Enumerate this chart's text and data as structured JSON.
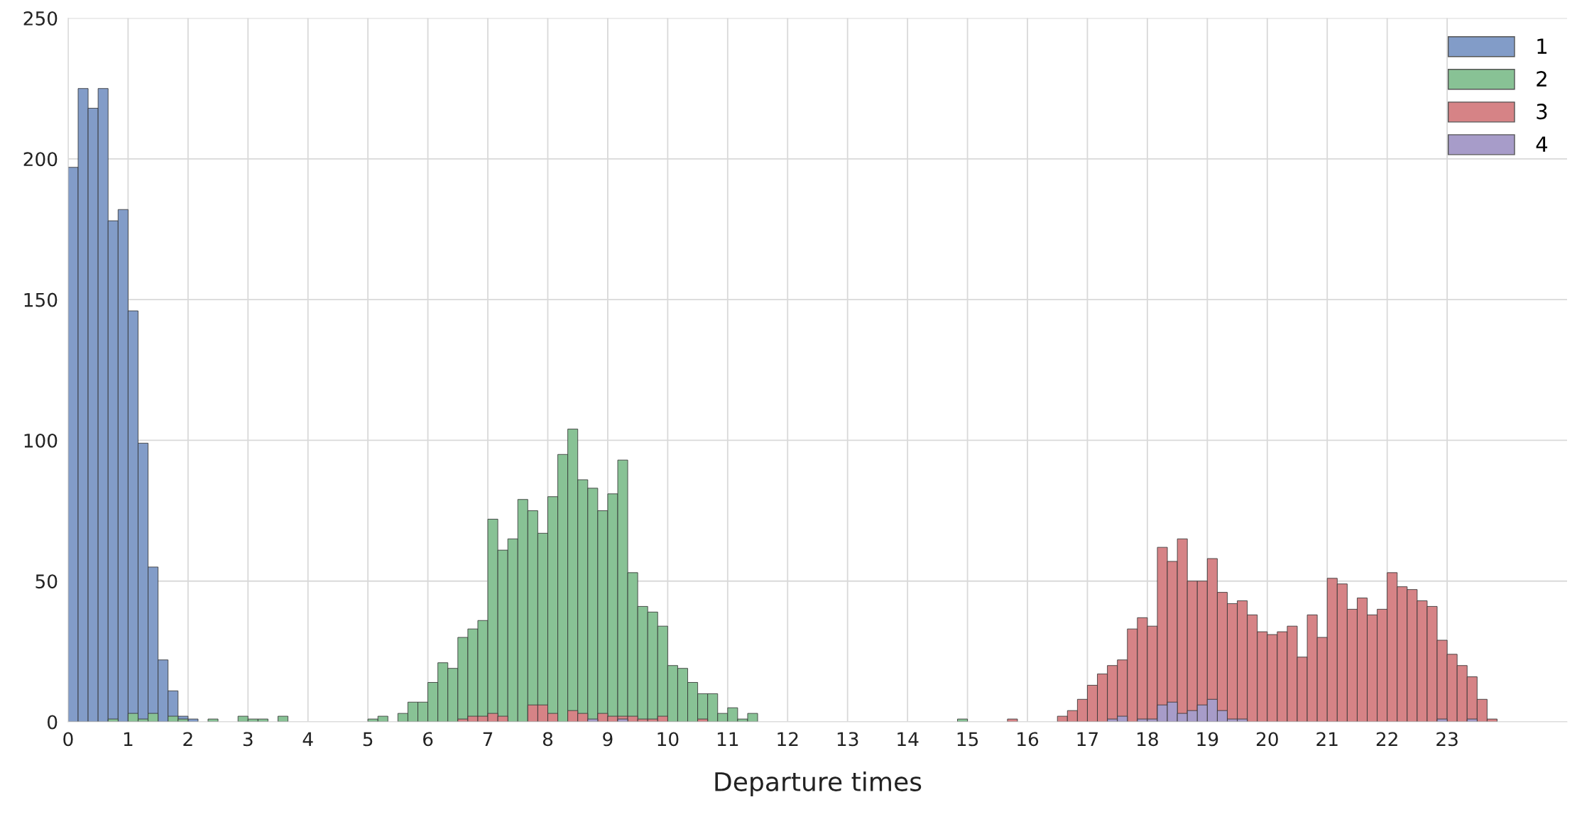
{
  "chart_data": {
    "type": "histogram",
    "xlabel": "Departure times",
    "bins": [
      0,
      0.1667,
      0.3333,
      0.5,
      0.6667,
      0.8333,
      1,
      1.1667,
      1.3333,
      1.5,
      1.6667,
      1.8333,
      2,
      2.1667,
      2.3333,
      2.5,
      2.6667,
      2.8333,
      3,
      3.1667,
      3.3333,
      3.5,
      3.6667,
      3.8333,
      4,
      4.1667,
      4.3333,
      4.5,
      4.6667,
      4.8333,
      5,
      5.1667,
      5.3333,
      5.5,
      5.6667,
      5.8333,
      6,
      6.1667,
      6.3333,
      6.5,
      6.6667,
      6.8333,
      7,
      7.1667,
      7.3333,
      7.5,
      7.6667,
      7.8333,
      8,
      8.1667,
      8.3333,
      8.5,
      8.6667,
      8.8333,
      9,
      9.1667,
      9.3333,
      9.5,
      9.6667,
      9.8333,
      10,
      10.1667,
      10.3333,
      10.5,
      10.6667,
      10.8333,
      11,
      11.1667,
      11.3333,
      11.5,
      11.6667,
      11.8333,
      12,
      12.1667,
      12.3333,
      12.5,
      12.6667,
      12.8333,
      13,
      13.1667,
      13.3333,
      13.5,
      13.6667,
      13.8333,
      14,
      14.1667,
      14.3333,
      14.5,
      14.6667,
      14.8333,
      15,
      15.1667,
      15.3333,
      15.5,
      15.6667,
      15.8333,
      16,
      16.1667,
      16.3333,
      16.5,
      16.6667,
      16.8333,
      17,
      17.1667,
      17.3333,
      17.5,
      17.6667,
      17.8333,
      18,
      18.1667,
      18.3333,
      18.5,
      18.6667,
      18.8333,
      19,
      19.1667,
      19.3333,
      19.5,
      19.6667,
      19.8333,
      20,
      20.1667,
      20.3333,
      20.5,
      20.6667,
      20.8333,
      21,
      21.1667,
      21.3333,
      21.5,
      21.6667,
      21.8333,
      22,
      22.1667,
      22.3333,
      22.5,
      22.6667,
      22.8333,
      23,
      23.1667,
      23.3333,
      23.5,
      23.6667,
      23.8333,
      24
    ],
    "series": [
      {
        "name": "1",
        "color": "#829cc8",
        "values": [
          197,
          225,
          218,
          225,
          178,
          182,
          146,
          99,
          55,
          22,
          11,
          2,
          1,
          0,
          0,
          0,
          0,
          0,
          0,
          0,
          0,
          0,
          0,
          0,
          0,
          0,
          0,
          0,
          0,
          0,
          0,
          0,
          0,
          0,
          0,
          0,
          0,
          0,
          0,
          0,
          0,
          0,
          0,
          0,
          0,
          0,
          0,
          0,
          0,
          0,
          0,
          0,
          0,
          0,
          0,
          0,
          0,
          0,
          0,
          0,
          0,
          0,
          0,
          0,
          0,
          0,
          0,
          0,
          0,
          0,
          0,
          0,
          0,
          0,
          0,
          0,
          0,
          0,
          0,
          0,
          0,
          0,
          0,
          0,
          0,
          0,
          0,
          0,
          0,
          0,
          0,
          0,
          0,
          0,
          0,
          0,
          0,
          0,
          0,
          0,
          0,
          0,
          0,
          0,
          0,
          0,
          0,
          0,
          0,
          0,
          0,
          0,
          0,
          0,
          0,
          0,
          0,
          0,
          0,
          0,
          0,
          0,
          0,
          0,
          0,
          0,
          0,
          0,
          0,
          0,
          0,
          0,
          0,
          0,
          0,
          0,
          0,
          0,
          0,
          0,
          0,
          0,
          0,
          0
        ]
      },
      {
        "name": "2",
        "color": "#88c295",
        "values": [
          0,
          0,
          0,
          0,
          1,
          0,
          3,
          1,
          3,
          0,
          2,
          1,
          0,
          0,
          1,
          0,
          0,
          2,
          1,
          1,
          0,
          2,
          0,
          0,
          0,
          0,
          0,
          0,
          0,
          0,
          1,
          2,
          0,
          3,
          7,
          7,
          14,
          21,
          19,
          30,
          33,
          36,
          72,
          61,
          65,
          79,
          75,
          67,
          80,
          95,
          104,
          86,
          83,
          75,
          81,
          93,
          53,
          41,
          39,
          34,
          20,
          19,
          14,
          10,
          10,
          3,
          5,
          1,
          3,
          0,
          0,
          0,
          0,
          0,
          0,
          0,
          0,
          0,
          0,
          0,
          0,
          0,
          0,
          0,
          0,
          0,
          0,
          0,
          0,
          1,
          0,
          0,
          0,
          0,
          0,
          0,
          0,
          0,
          0,
          0,
          0,
          0,
          0,
          0,
          0,
          0,
          0,
          0,
          0,
          0,
          0,
          0,
          0,
          0,
          0,
          0,
          0,
          0,
          0,
          0,
          0,
          0,
          0,
          0,
          0,
          0,
          0,
          0,
          0,
          0,
          0,
          0,
          0,
          0,
          0,
          0,
          0,
          0,
          0,
          0,
          0,
          0,
          0,
          0
        ]
      },
      {
        "name": "3",
        "color": "#d68386",
        "values": [
          0,
          0,
          0,
          0,
          0,
          0,
          0,
          0,
          0,
          0,
          0,
          0,
          0,
          0,
          0,
          0,
          0,
          0,
          0,
          0,
          0,
          0,
          0,
          0,
          0,
          0,
          0,
          0,
          0,
          0,
          0,
          0,
          0,
          0,
          0,
          0,
          0,
          0,
          0,
          1,
          2,
          2,
          3,
          2,
          0,
          0,
          6,
          6,
          3,
          0,
          4,
          3,
          0,
          3,
          2,
          2,
          2,
          1,
          1,
          2,
          0,
          0,
          0,
          1,
          0,
          0,
          0,
          0,
          0,
          0,
          0,
          0,
          0,
          0,
          0,
          0,
          0,
          0,
          0,
          0,
          0,
          0,
          0,
          0,
          0,
          0,
          0,
          0,
          0,
          0,
          0,
          0,
          0,
          0,
          1,
          0,
          0,
          0,
          0,
          2,
          4,
          8,
          13,
          17,
          20,
          22,
          33,
          37,
          34,
          62,
          57,
          65,
          50,
          50,
          58,
          46,
          42,
          43,
          38,
          32,
          31,
          32,
          34,
          23,
          38,
          30,
          51,
          49,
          40,
          44,
          38,
          40,
          53,
          48,
          47,
          43,
          41,
          29,
          24,
          20,
          16,
          8,
          1,
          0
        ]
      },
      {
        "name": "4",
        "color": "#a79cc9",
        "values": [
          0,
          0,
          0,
          0,
          0,
          0,
          0,
          0,
          0,
          0,
          0,
          0,
          0,
          0,
          0,
          0,
          0,
          0,
          0,
          0,
          0,
          0,
          0,
          0,
          0,
          0,
          0,
          0,
          0,
          0,
          0,
          0,
          0,
          0,
          0,
          0,
          0,
          0,
          0,
          0,
          0,
          0,
          0,
          0,
          0,
          0,
          0,
          0,
          0,
          0,
          0,
          0,
          1,
          0,
          0,
          1,
          0,
          0,
          0,
          0,
          0,
          0,
          0,
          0,
          0,
          0,
          0,
          0,
          0,
          0,
          0,
          0,
          0,
          0,
          0,
          0,
          0,
          0,
          0,
          0,
          0,
          0,
          0,
          0,
          0,
          0,
          0,
          0,
          0,
          0,
          0,
          0,
          0,
          0,
          0,
          0,
          0,
          0,
          0,
          0,
          0,
          0,
          0,
          0,
          1,
          2,
          0,
          1,
          1,
          6,
          7,
          3,
          4,
          6,
          8,
          4,
          1,
          1,
          0,
          0,
          0,
          0,
          0,
          0,
          0,
          0,
          0,
          0,
          0,
          0,
          0,
          0,
          0,
          0,
          0,
          0,
          0,
          1,
          0,
          0,
          1,
          0,
          0,
          0
        ]
      }
    ],
    "xlim": [
      0,
      25
    ],
    "xticks": [
      0,
      1,
      2,
      3,
      4,
      5,
      6,
      7,
      8,
      9,
      10,
      11,
      12,
      13,
      14,
      15,
      16,
      17,
      18,
      19,
      20,
      21,
      22,
      23
    ],
    "ylim": [
      0,
      250
    ],
    "yticks": [
      0,
      50,
      100,
      150,
      200,
      250
    ],
    "grid": true,
    "legend": "top right"
  }
}
